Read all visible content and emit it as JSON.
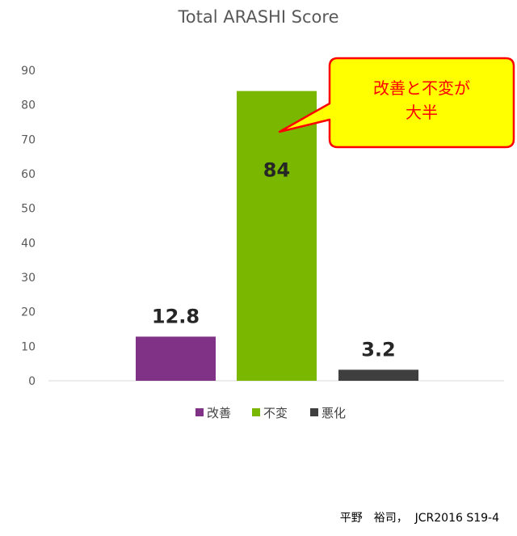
{
  "chart_data": {
    "type": "bar",
    "title": "Total ARASHI Score",
    "categories": [
      "改善",
      "不変",
      "悪化"
    ],
    "values": [
      12.8,
      84,
      3.2
    ],
    "value_labels": [
      "12.8",
      "84",
      "3.2"
    ],
    "colors": [
      "#7f3286",
      "#79b700",
      "#3f3f3f"
    ],
    "ylim": [
      0,
      90
    ],
    "yticks": [
      "0",
      "10",
      "20",
      "30",
      "40",
      "50",
      "60",
      "70",
      "80",
      "90"
    ],
    "grid": false,
    "legend": {
      "placement": "bottom",
      "entries": [
        "改善",
        "不変",
        "悪化"
      ]
    },
    "annotation": {
      "lines": [
        "改善と不変が",
        "大半"
      ],
      "fill": "#ffff00",
      "border": "#ff0000",
      "text_color": "#ff0000"
    }
  },
  "credit": "平野　裕司，  JCR2016 S19-4"
}
